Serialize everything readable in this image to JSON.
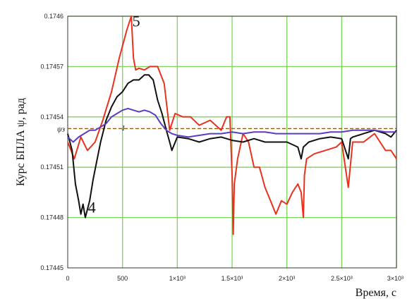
{
  "chart_data": {
    "type": "line",
    "ylabel": "Курс БПЛА ψ, рад",
    "xlabel": "Время, с",
    "xlim": [
      0,
      3000
    ],
    "ylim": [
      0.17445,
      0.1746
    ],
    "x_ticks": [
      {
        "value": 0,
        "label": "0"
      },
      {
        "value": 500,
        "label": "500"
      },
      {
        "value": 1000,
        "label": "1×10³"
      },
      {
        "value": 1500,
        "label": "1.5×10³"
      },
      {
        "value": 2000,
        "label": "2×10³"
      },
      {
        "value": 2500,
        "label": "2.5×10³"
      },
      {
        "value": 3000,
        "label": "3×10³"
      }
    ],
    "y_ticks": [
      {
        "value": 0.17445,
        "label": "0.17445"
      },
      {
        "value": 0.17448,
        "label": "0.17448"
      },
      {
        "value": 0.17451,
        "label": "0.17451"
      },
      {
        "value": 0.17454,
        "label": "0.17454"
      },
      {
        "value": 0.17457,
        "label": "0.17457"
      },
      {
        "value": 0.1746,
        "label": "0.1746"
      }
    ],
    "grid": true,
    "reference_line": {
      "label": "ψз",
      "y": 0.174533,
      "color": "#8a5a1a"
    },
    "annotations": [
      {
        "text": "5",
        "x": 590,
        "y": 0.174594
      },
      {
        "text": "4",
        "x": 185,
        "y": 0.174483
      },
      {
        "text": "1",
        "x": 490,
        "y": 0.174532
      }
    ],
    "series": [
      {
        "color": "#e8321e",
        "x": [
          0,
          60,
          120,
          180,
          250,
          320,
          400,
          470,
          540,
          580,
          600,
          620,
          650,
          700,
          750,
          820,
          880,
          930,
          980,
          1050,
          1120,
          1200,
          1300,
          1400,
          1450,
          1480,
          1500,
          1510,
          1520,
          1550,
          1600,
          1650,
          1700,
          1750,
          1800,
          1850,
          1900,
          1950,
          2000,
          2050,
          2100,
          2130,
          2150,
          2160,
          2180,
          2250,
          2350,
          2450,
          2500,
          2560,
          2600,
          2700,
          2800,
          2850,
          2900,
          2950,
          3000
        ],
        "y": [
          0.174525,
          0.174515,
          0.174528,
          0.17452,
          0.174525,
          0.174538,
          0.174555,
          0.174575,
          0.174592,
          0.1746,
          0.174575,
          0.174568,
          0.174569,
          0.174568,
          0.17457,
          0.17457,
          0.17456,
          0.174532,
          0.174542,
          0.17454,
          0.17454,
          0.174535,
          0.174538,
          0.174532,
          0.17454,
          0.17454,
          0.174505,
          0.17447,
          0.1745,
          0.174515,
          0.17453,
          0.174525,
          0.17451,
          0.17451,
          0.174498,
          0.17449,
          0.174482,
          0.17449,
          0.174488,
          0.174495,
          0.1745,
          0.174495,
          0.17448,
          0.174505,
          0.174515,
          0.174518,
          0.17452,
          0.174522,
          0.174525,
          0.174498,
          0.174525,
          0.174525,
          0.17453,
          0.174525,
          0.17452,
          0.17452,
          0.174515
        ]
      },
      {
        "color": "#111111",
        "x": [
          0,
          40,
          70,
          100,
          120,
          140,
          160,
          180,
          200,
          230,
          260,
          300,
          350,
          400,
          450,
          500,
          550,
          600,
          650,
          700,
          740,
          780,
          820,
          860,
          900,
          930,
          950,
          1000,
          1100,
          1200,
          1300,
          1400,
          1500,
          1600,
          1700,
          1800,
          1900,
          2000,
          2100,
          2130,
          2150,
          2200,
          2300,
          2400,
          2500,
          2560,
          2580,
          2600,
          2700,
          2800,
          2900,
          2950,
          3000
        ],
        "y": [
          0.17453,
          0.17452,
          0.1745,
          0.17449,
          0.174482,
          0.174488,
          0.17448,
          0.174485,
          0.17449,
          0.174502,
          0.174512,
          0.174525,
          0.174538,
          0.174546,
          0.174552,
          0.174555,
          0.17456,
          0.174562,
          0.174562,
          0.174565,
          0.174565,
          0.174562,
          0.17455,
          0.174542,
          0.174532,
          0.174525,
          0.17452,
          0.174528,
          0.174527,
          0.174525,
          0.174527,
          0.174528,
          0.174526,
          0.174525,
          0.174527,
          0.174525,
          0.174525,
          0.174525,
          0.174522,
          0.174515,
          0.174522,
          0.174525,
          0.174527,
          0.174528,
          0.174527,
          0.174515,
          0.174527,
          0.174528,
          0.17453,
          0.174532,
          0.17453,
          0.174528,
          0.174532
        ]
      },
      {
        "color": "#5b3cc4",
        "x": [
          0,
          50,
          100,
          150,
          200,
          250,
          300,
          350,
          400,
          450,
          500,
          550,
          600,
          650,
          700,
          750,
          800,
          850,
          900,
          950,
          1000,
          1100,
          1200,
          1300,
          1400,
          1500,
          1600,
          1700,
          1800,
          1900,
          2000,
          2100,
          2200,
          2300,
          2400,
          2500,
          2600,
          2700,
          2800,
          2900,
          3000
        ],
        "y": [
          0.174528,
          0.174525,
          0.174528,
          0.17453,
          0.174532,
          0.174532,
          0.174534,
          0.174536,
          0.17454,
          0.174542,
          0.174544,
          0.174545,
          0.174544,
          0.174543,
          0.174544,
          0.174543,
          0.174541,
          0.174536,
          0.174532,
          0.17453,
          0.174529,
          0.174528,
          0.174529,
          0.17453,
          0.17453,
          0.174531,
          0.17453,
          0.174531,
          0.174531,
          0.17453,
          0.17453,
          0.17453,
          0.17453,
          0.17453,
          0.174531,
          0.174531,
          0.174532,
          0.174532,
          0.174532,
          0.174531,
          0.174531
        ]
      }
    ]
  }
}
